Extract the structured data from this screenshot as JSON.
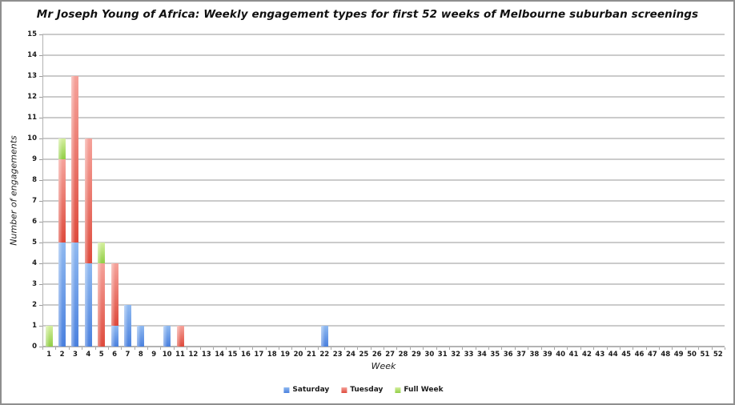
{
  "window": {
    "title": "Mr Joseph Young of Africa: Weekly engagement types for first 52 weeks of Melbourne suburban screenings"
  },
  "chart_data": {
    "type": "bar",
    "stacked": true,
    "title": "Mr Joseph Young of Africa: Weekly engagement types for first 52 weeks of Melbourne suburban screenings",
    "xlabel": "Week",
    "ylabel": "Number of engagements",
    "ylim": [
      0,
      15
    ],
    "ytick_step": 1,
    "grid": true,
    "legend_position": "bottom",
    "categories": [
      1,
      2,
      3,
      4,
      5,
      6,
      7,
      8,
      9,
      10,
      11,
      12,
      13,
      14,
      15,
      16,
      17,
      18,
      19,
      20,
      21,
      22,
      23,
      24,
      25,
      26,
      27,
      28,
      29,
      30,
      31,
      32,
      33,
      34,
      35,
      36,
      37,
      38,
      39,
      40,
      41,
      42,
      43,
      44,
      45,
      46,
      47,
      48,
      49,
      50,
      51,
      52
    ],
    "series": [
      {
        "name": "Saturday",
        "color": "#6D9EEB",
        "color_light": "#8FB9F0",
        "color_dark": "#4A80DE",
        "values": [
          0,
          5,
          5,
          4,
          0,
          1,
          2,
          1,
          0,
          1,
          0,
          0,
          0,
          0,
          0,
          0,
          0,
          0,
          0,
          0,
          0,
          1,
          0,
          0,
          0,
          0,
          0,
          0,
          0,
          0,
          0,
          0,
          0,
          0,
          0,
          0,
          0,
          0,
          0,
          0,
          0,
          0,
          0,
          0,
          0,
          0,
          0,
          0,
          0,
          0,
          0,
          0
        ]
      },
      {
        "name": "Tuesday",
        "color": "#E8695C",
        "color_light": "#F5A29A",
        "color_dark": "#DE4A3C",
        "values": [
          0,
          4,
          8,
          6,
          4,
          3,
          0,
          0,
          0,
          0,
          1,
          0,
          0,
          0,
          0,
          0,
          0,
          0,
          0,
          0,
          0,
          0,
          0,
          0,
          0,
          0,
          0,
          0,
          0,
          0,
          0,
          0,
          0,
          0,
          0,
          0,
          0,
          0,
          0,
          0,
          0,
          0,
          0,
          0,
          0,
          0,
          0,
          0,
          0,
          0,
          0,
          0
        ]
      },
      {
        "name": "Full Week",
        "color": "#AFDD5E",
        "color_light": "#D5EF9F",
        "color_dark": "#90CE45",
        "values": [
          1,
          1,
          0,
          0,
          1,
          0,
          0,
          0,
          0,
          0,
          0,
          0,
          0,
          0,
          0,
          0,
          0,
          0,
          0,
          0,
          0,
          0,
          0,
          0,
          0,
          0,
          0,
          0,
          0,
          0,
          0,
          0,
          0,
          0,
          0,
          0,
          0,
          0,
          0,
          0,
          0,
          0,
          0,
          0,
          0,
          0,
          0,
          0,
          0,
          0,
          0,
          0
        ]
      }
    ]
  }
}
